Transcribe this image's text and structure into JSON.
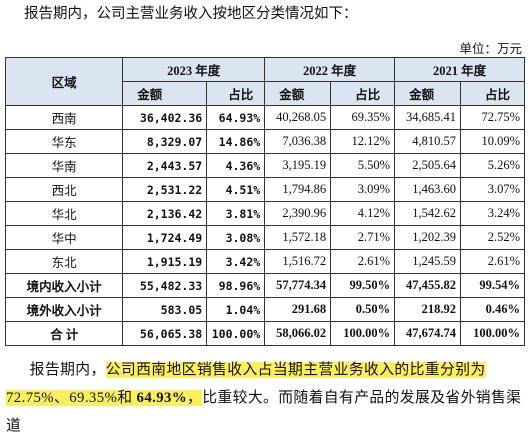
{
  "intro": "报告期内，公司主营业务收入按地区分类情况如下：",
  "unit": "单位：万元",
  "table": {
    "region_header": "区域",
    "years": [
      "2023 年度",
      "2022 年度",
      "2021 年度"
    ],
    "subheaders": [
      "金额",
      "占比",
      "金额",
      "占比",
      "金额",
      "占比"
    ],
    "rows": [
      [
        "西南",
        "36,402.36",
        "64.93%",
        "40,268.05",
        "69.35%",
        "34,685.41",
        "72.75%"
      ],
      [
        "华东",
        "8,329.07",
        "14.86%",
        "7,036.38",
        "12.12%",
        "4,810.57",
        "10.09%"
      ],
      [
        "华南",
        "2,443.57",
        "4.36%",
        "3,195.19",
        "5.50%",
        "2,505.64",
        "5.26%"
      ],
      [
        "西北",
        "2,531.22",
        "4.51%",
        "1,794.86",
        "3.09%",
        "1,463.60",
        "3.07%"
      ],
      [
        "华北",
        "2,136.42",
        "3.81%",
        "2,390.96",
        "4.12%",
        "1,542.62",
        "3.24%"
      ],
      [
        "华中",
        "1,724.49",
        "3.08%",
        "1,572.18",
        "2.71%",
        "1,202.39",
        "2.52%"
      ],
      [
        "东北",
        "1,915.19",
        "3.42%",
        "1,516.72",
        "2.61%",
        "1,245.59",
        "2.61%"
      ],
      [
        "境内收入小计",
        "55,482.33",
        "98.96%",
        "57,774.34",
        "99.50%",
        "47,455.82",
        "99.54%"
      ],
      [
        "境外收入小计",
        "583.05",
        "1.04%",
        "291.68",
        "0.50%",
        "218.92",
        "0.46%"
      ],
      [
        "合 计",
        "56,065.38",
        "100.00%",
        "58,066.02",
        "100.00%",
        "47,674.74",
        "100.00%"
      ]
    ]
  },
  "paragraph": [
    "报告期内，",
    "公司西南地区销售收入占当期主营业务收入的比重分别为",
    "72.75%、69.35%和",
    " 64.93%",
    "，",
    "比重较大。而随着自有产品的发展及省外销售渠道"
  ]
}
